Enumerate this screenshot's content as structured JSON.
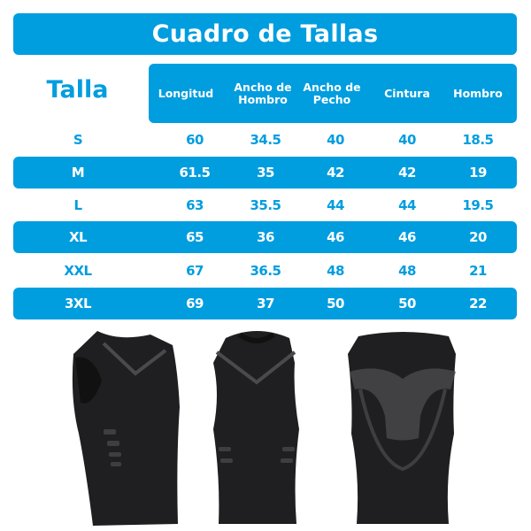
{
  "title": "Cuadro de Tallas",
  "size_label": "Talla",
  "columns": [
    "Longitud",
    "Ancho de Hombro",
    "Ancho de Pecho",
    "Cintura",
    "Hombro"
  ],
  "rows": [
    {
      "size": "S",
      "values": [
        "60",
        "34.5",
        "40",
        "40",
        "18.5"
      ],
      "highlighted": false
    },
    {
      "size": "M",
      "values": [
        "61.5",
        "35",
        "42",
        "42",
        "19"
      ],
      "highlighted": true
    },
    {
      "size": "L",
      "values": [
        "63",
        "35.5",
        "44",
        "44",
        "19.5"
      ],
      "highlighted": false
    },
    {
      "size": "XL",
      "values": [
        "65",
        "36",
        "46",
        "46",
        "20"
      ],
      "highlighted": true
    },
    {
      "size": "XXL",
      "values": [
        "67",
        "36.5",
        "48",
        "48",
        "21"
      ],
      "highlighted": false
    },
    {
      "size": "3XL",
      "values": [
        "69",
        "37",
        "50",
        "50",
        "22"
      ],
      "highlighted": true
    }
  ],
  "colors": {
    "accent": "#009ddf",
    "garment": "#1f1f21",
    "garment_pattern": "#4a4a4e"
  },
  "images": [
    "black-compression-vest-three-quarter-front",
    "black-compression-vest-front",
    "black-compression-vest-back"
  ]
}
